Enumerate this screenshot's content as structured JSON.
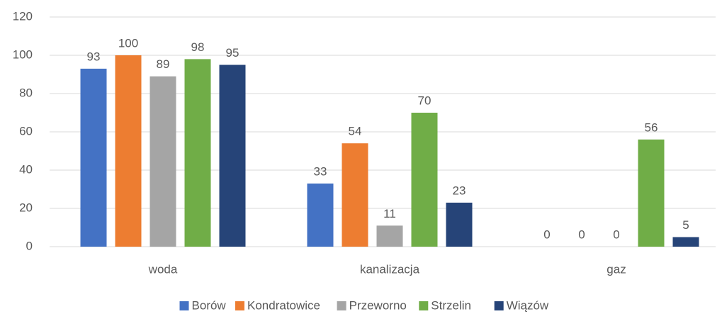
{
  "chart_data": {
    "type": "bar",
    "categories": [
      "woda",
      "kanalizacja",
      "gaz"
    ],
    "series": [
      {
        "name": "Borów",
        "color": "#4472c4",
        "values": [
          93,
          33,
          0
        ]
      },
      {
        "name": "Kondratowice",
        "color": "#ed7d31",
        "values": [
          100,
          54,
          0
        ]
      },
      {
        "name": "Przeworno",
        "color": "#a5a5a5",
        "values": [
          89,
          11,
          0
        ]
      },
      {
        "name": "Strzelin",
        "color": "#70ad47",
        "values": [
          98,
          70,
          56
        ]
      },
      {
        "name": "Wiązów",
        "color": "#264478",
        "values": [
          95,
          23,
          5
        ]
      }
    ],
    "ylim": [
      0,
      120
    ],
    "yticks": [
      0,
      20,
      40,
      60,
      80,
      100,
      120
    ],
    "grid": true,
    "legend": "bottom"
  }
}
